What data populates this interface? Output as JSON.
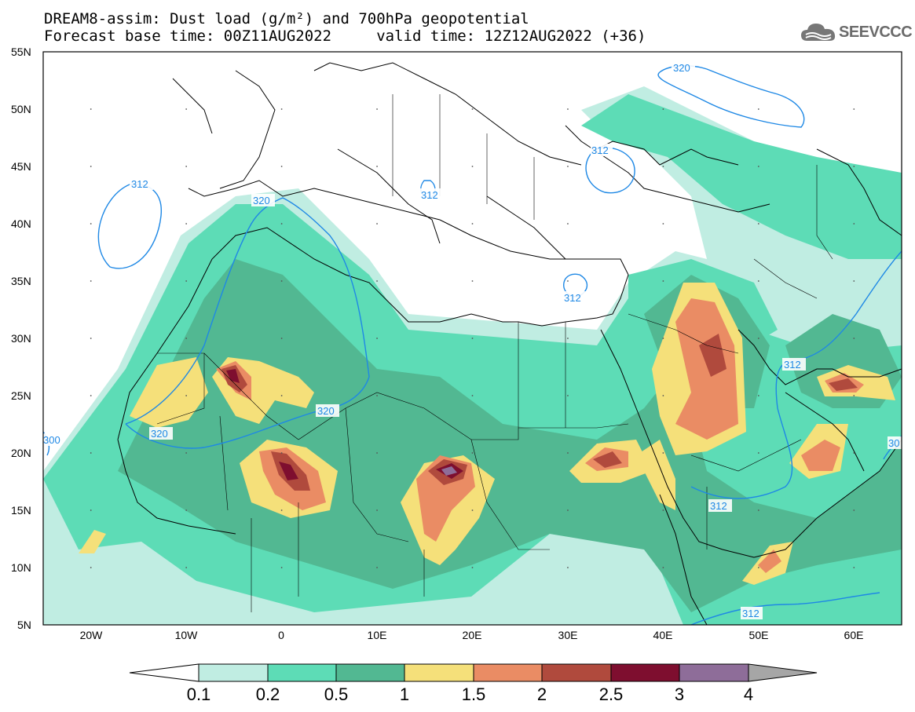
{
  "header": {
    "line1": "DREAM8-assim: Dust load (g/m²) and 700hPa geopotential",
    "line2": "Forecast base time: 00Z11AUG2022     valid time: 12Z12AUG2022 (+36)"
  },
  "logo": {
    "text": "SEEVCCC",
    "icon": "cloud-icon"
  },
  "map": {
    "lon_range": [
      -25,
      65
    ],
    "lat_range": [
      5,
      55
    ],
    "lat_labels": [
      "55N",
      "50N",
      "45N",
      "40N",
      "35N",
      "30N",
      "25N",
      "20N",
      "15N",
      "10N",
      "5N"
    ],
    "lon_labels": [
      "20W",
      "10W",
      "0",
      "10E",
      "20E",
      "30E",
      "40E",
      "50E",
      "60E"
    ],
    "contour_labels": [
      {
        "text": "320"
      },
      {
        "text": "312"
      },
      {
        "text": "320"
      },
      {
        "text": "312"
      },
      {
        "text": "312"
      },
      {
        "text": "320"
      },
      {
        "text": "320"
      },
      {
        "text": "312"
      },
      {
        "text": "312"
      },
      {
        "text": "312"
      },
      {
        "text": "300"
      },
      {
        "text": "30"
      }
    ]
  },
  "colorbar": {
    "colors": [
      "#ffffff",
      "#c0ede2",
      "#5ddcb6",
      "#52b892",
      "#f5e07a",
      "#ea8c64",
      "#b04a3d",
      "#7e0e2f",
      "#8e6d99",
      "#a6a6a6"
    ],
    "labels": [
      "0.1",
      "0.2",
      "0.5",
      "1",
      "1.5",
      "2",
      "2.5",
      "3",
      "4"
    ]
  }
}
